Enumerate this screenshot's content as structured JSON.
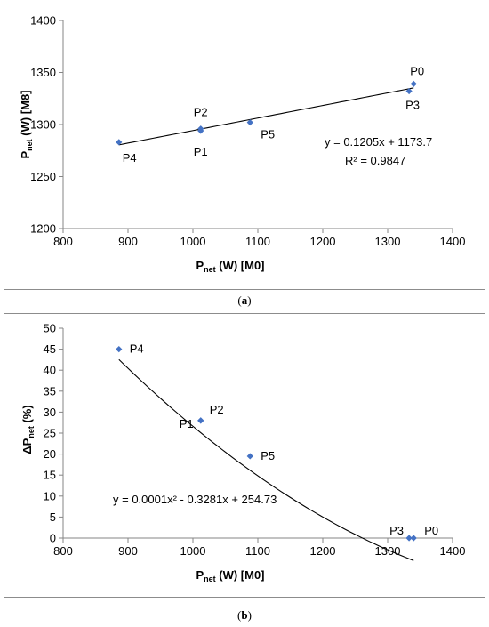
{
  "captions": [
    "a",
    "b"
  ],
  "chart_data": [
    {
      "type": "scatter",
      "panel": "a",
      "xlabel": {
        "main": "P",
        "sub": "net",
        "rest": " (W) [M0]"
      },
      "ylabel": {
        "main": "P",
        "sub": "net",
        "rest": " (W) [M8]"
      },
      "xlim": [
        800,
        1400
      ],
      "ylim": [
        1200,
        1400
      ],
      "xticks": [
        800,
        900,
        1000,
        1100,
        1200,
        1300,
        1400
      ],
      "yticks": [
        1200,
        1250,
        1300,
        1350,
        1400
      ],
      "grid": false,
      "marker_color": "#4472C4",
      "points": [
        {
          "label": "P0",
          "x": 1340,
          "y": 1339
        },
        {
          "label": "P1",
          "x": 1012,
          "y": 1294
        },
        {
          "label": "P2",
          "x": 1012,
          "y": 1296
        },
        {
          "label": "P3",
          "x": 1333,
          "y": 1332
        },
        {
          "label": "P4",
          "x": 886,
          "y": 1283
        },
        {
          "label": "P5",
          "x": 1088,
          "y": 1302
        }
      ],
      "trendline": {
        "kind": "linear",
        "coefficients": [
          0.1205,
          1173.7
        ],
        "x_range": [
          886,
          1340
        ]
      },
      "equation": "y = 0.1205x + 1173.7",
      "r2": "R² = 0.9847"
    },
    {
      "type": "scatter",
      "panel": "b",
      "xlabel": {
        "main": "P",
        "sub": "net",
        "rest": " (W)  [M0]"
      },
      "ylabel": {
        "main": "ΔP",
        "sub": "net",
        "rest": " (%)"
      },
      "xlim": [
        800,
        1400
      ],
      "ylim": [
        0,
        50
      ],
      "xticks": [
        800,
        900,
        1000,
        1100,
        1200,
        1300,
        1400
      ],
      "yticks": [
        0,
        5,
        10,
        15,
        20,
        25,
        30,
        35,
        40,
        45,
        50
      ],
      "grid": false,
      "marker_color": "#4472C4",
      "points": [
        {
          "label": "P0",
          "x": 1340,
          "y": 0
        },
        {
          "label": "P1",
          "x": 1012,
          "y": 28
        },
        {
          "label": "P2",
          "x": 1012,
          "y": 28
        },
        {
          "label": "P3",
          "x": 1333,
          "y": 0
        },
        {
          "label": "P4",
          "x": 886,
          "y": 45
        },
        {
          "label": "P5",
          "x": 1088,
          "y": 19.5
        }
      ],
      "trendline": {
        "kind": "polynomial",
        "coefficients": [
          0.0001,
          -0.3281,
          254.73
        ],
        "x_range": [
          886,
          1340
        ]
      },
      "equation": "y = 0.0001x² - 0.3281x + 254.73"
    }
  ]
}
